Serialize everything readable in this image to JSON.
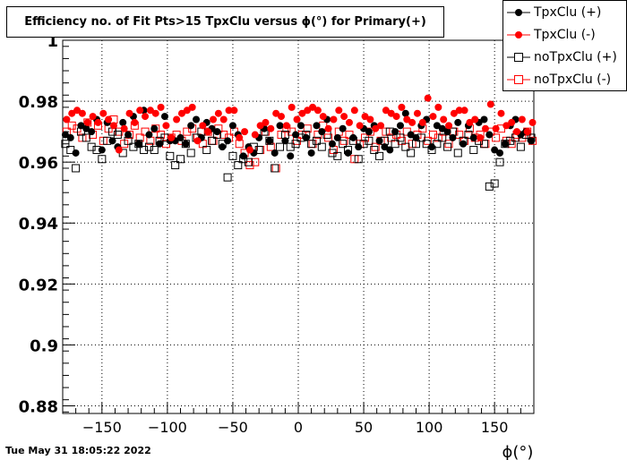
{
  "title": "Efficiency no. of Fit Pts>15 TpxClu versus ϕ(°) for Primary(+)",
  "datestamp": "Tue May 31 18:05:22 2022",
  "chart_data": {
    "type": "scatter",
    "title": "Efficiency no. of Fit Pts>15 TpxClu versus ϕ(°) for Primary(+)",
    "xlabel": "ϕ(°)",
    "ylabel": "",
    "xlim": [
      -180,
      180
    ],
    "ylim": [
      0.8775,
      1.0
    ],
    "x_ticks": [
      -150,
      -100,
      -50,
      0,
      50,
      100,
      150
    ],
    "x_tick_labels": [
      "−150",
      "−100",
      "−50",
      "0",
      "50",
      "100",
      "150"
    ],
    "y_ticks": [
      0.88,
      0.9,
      0.92,
      0.94,
      0.96,
      0.98,
      1.0
    ],
    "y_tick_labels": [
      "0.88",
      "0.9",
      "0.92",
      "0.94",
      "0.96",
      "0.98",
      "1"
    ],
    "grid": true,
    "legend_position": "top-right",
    "series": [
      {
        "name": "TpxClu (+)",
        "marker": "filled-circle",
        "color": "#000000",
        "x": [
          -178,
          -174,
          -170,
          -166,
          -162,
          -158,
          -154,
          -150,
          -146,
          -142,
          -138,
          -134,
          -130,
          -126,
          -122,
          -118,
          -114,
          -110,
          -106,
          -102,
          -98,
          -94,
          -90,
          -86,
          -82,
          -78,
          -74,
          -70,
          -66,
          -62,
          -58,
          -54,
          -50,
          -46,
          -42,
          -38,
          -34,
          -30,
          -26,
          -22,
          -18,
          -14,
          -10,
          -6,
          -2,
          2,
          6,
          10,
          14,
          18,
          22,
          26,
          30,
          34,
          38,
          42,
          46,
          50,
          54,
          58,
          62,
          66,
          70,
          74,
          78,
          82,
          86,
          90,
          94,
          98,
          102,
          106,
          110,
          114,
          118,
          122,
          126,
          130,
          134,
          138,
          142,
          146,
          150,
          154,
          158,
          162,
          166,
          170,
          174,
          178
        ],
        "y": [
          0.969,
          0.968,
          0.963,
          0.972,
          0.971,
          0.97,
          0.974,
          0.964,
          0.973,
          0.967,
          0.965,
          0.973,
          0.969,
          0.975,
          0.966,
          0.977,
          0.969,
          0.971,
          0.966,
          0.975,
          0.967,
          0.967,
          0.968,
          0.966,
          0.972,
          0.974,
          0.968,
          0.973,
          0.971,
          0.97,
          0.965,
          0.967,
          0.972,
          0.969,
          0.962,
          0.965,
          0.963,
          0.968,
          0.971,
          0.967,
          0.963,
          0.972,
          0.967,
          0.962,
          0.969,
          0.972,
          0.968,
          0.963,
          0.972,
          0.97,
          0.974,
          0.966,
          0.968,
          0.971,
          0.963,
          0.968,
          0.965,
          0.971,
          0.97,
          0.972,
          0.967,
          0.965,
          0.964,
          0.97,
          0.972,
          0.976,
          0.969,
          0.968,
          0.972,
          0.974,
          0.965,
          0.972,
          0.971,
          0.97,
          0.968,
          0.973,
          0.966,
          0.972,
          0.968,
          0.973,
          0.974,
          0.969,
          0.964,
          0.963,
          0.966,
          0.972,
          0.974,
          0.969,
          0.97,
          0.967
        ]
      },
      {
        "name": "TpxClu (-)",
        "marker": "filled-circle",
        "color": "#ff0000",
        "x": [
          -177,
          -173,
          -169,
          -165,
          -161,
          -157,
          -153,
          -149,
          -145,
          -141,
          -137,
          -133,
          -129,
          -125,
          -121,
          -117,
          -113,
          -109,
          -105,
          -101,
          -97,
          -93,
          -89,
          -85,
          -81,
          -77,
          -73,
          -69,
          -65,
          -61,
          -57,
          -53,
          -49,
          -45,
          -41,
          -37,
          -33,
          -29,
          -25,
          -21,
          -17,
          -13,
          -9,
          -5,
          -1,
          3,
          7,
          11,
          15,
          19,
          23,
          27,
          31,
          35,
          39,
          43,
          47,
          51,
          55,
          59,
          63,
          67,
          71,
          75,
          79,
          83,
          87,
          91,
          95,
          99,
          103,
          107,
          111,
          115,
          119,
          123,
          127,
          131,
          135,
          139,
          143,
          147,
          151,
          155,
          159,
          163,
          167,
          171,
          175,
          179
        ],
        "y": [
          0.974,
          0.976,
          0.977,
          0.976,
          0.973,
          0.975,
          0.973,
          0.976,
          0.974,
          0.972,
          0.964,
          0.971,
          0.976,
          0.973,
          0.977,
          0.975,
          0.977,
          0.976,
          0.978,
          0.972,
          0.968,
          0.974,
          0.976,
          0.977,
          0.978,
          0.967,
          0.972,
          0.97,
          0.974,
          0.976,
          0.974,
          0.977,
          0.977,
          0.968,
          0.97,
          0.964,
          0.969,
          0.972,
          0.973,
          0.971,
          0.976,
          0.975,
          0.972,
          0.978,
          0.974,
          0.976,
          0.977,
          0.978,
          0.977,
          0.975,
          0.971,
          0.974,
          0.977,
          0.975,
          0.973,
          0.977,
          0.972,
          0.975,
          0.974,
          0.971,
          0.972,
          0.977,
          0.976,
          0.975,
          0.978,
          0.974,
          0.973,
          0.976,
          0.973,
          0.981,
          0.975,
          0.978,
          0.974,
          0.972,
          0.976,
          0.977,
          0.977,
          0.973,
          0.974,
          0.968,
          0.971,
          0.979,
          0.971,
          0.976,
          0.972,
          0.973,
          0.97,
          0.974,
          0.97,
          0.973
        ]
      },
      {
        "name": "noTpxClu (+)",
        "marker": "open-square",
        "color": "#000000",
        "x": [
          -178,
          -174,
          -170,
          -166,
          -162,
          -158,
          -154,
          -150,
          -146,
          -142,
          -138,
          -134,
          -130,
          -126,
          -122,
          -118,
          -114,
          -110,
          -106,
          -102,
          -98,
          -94,
          -90,
          -86,
          -82,
          -78,
          -74,
          -70,
          -66,
          -62,
          -58,
          -54,
          -50,
          -46,
          -42,
          -38,
          -34,
          -30,
          -26,
          -22,
          -18,
          -14,
          -10,
          -6,
          -2,
          2,
          6,
          10,
          14,
          18,
          22,
          26,
          30,
          34,
          38,
          42,
          46,
          50,
          54,
          58,
          62,
          66,
          70,
          74,
          78,
          82,
          86,
          90,
          94,
          98,
          102,
          106,
          110,
          114,
          118,
          122,
          126,
          130,
          134,
          138,
          142,
          146,
          150,
          154,
          158,
          162,
          166,
          170,
          174,
          178
        ],
        "y": [
          0.966,
          0.964,
          0.958,
          0.97,
          0.968,
          0.965,
          0.964,
          0.961,
          0.967,
          0.97,
          0.969,
          0.963,
          0.967,
          0.965,
          0.966,
          0.964,
          0.965,
          0.964,
          0.967,
          0.968,
          0.962,
          0.959,
          0.961,
          0.966,
          0.963,
          0.968,
          0.97,
          0.964,
          0.967,
          0.969,
          0.966,
          0.955,
          0.962,
          0.959,
          0.961,
          0.96,
          0.965,
          0.964,
          0.97,
          0.967,
          0.958,
          0.965,
          0.969,
          0.965,
          0.966,
          0.968,
          0.969,
          0.966,
          0.967,
          0.965,
          0.969,
          0.963,
          0.962,
          0.966,
          0.964,
          0.967,
          0.961,
          0.966,
          0.967,
          0.964,
          0.962,
          0.967,
          0.97,
          0.966,
          0.968,
          0.965,
          0.963,
          0.966,
          0.968,
          0.966,
          0.964,
          0.966,
          0.968,
          0.965,
          0.97,
          0.963,
          0.967,
          0.969,
          0.964,
          0.967,
          0.966,
          0.952,
          0.953,
          0.96,
          0.966,
          0.967,
          0.968,
          0.965,
          0.969,
          0.968
        ]
      },
      {
        "name": "noTpxClu (-)",
        "marker": "open-square",
        "color": "#ff0000",
        "x": [
          -177,
          -173,
          -169,
          -165,
          -161,
          -157,
          -153,
          -149,
          -145,
          -141,
          -137,
          -133,
          -129,
          -125,
          -121,
          -117,
          -113,
          -109,
          -105,
          -101,
          -97,
          -93,
          -89,
          -85,
          -81,
          -77,
          -73,
          -69,
          -65,
          -61,
          -57,
          -53,
          -49,
          -45,
          -41,
          -37,
          -33,
          -29,
          -25,
          -21,
          -17,
          -13,
          -9,
          -5,
          -1,
          3,
          7,
          11,
          15,
          19,
          23,
          27,
          31,
          35,
          39,
          43,
          47,
          51,
          55,
          59,
          63,
          67,
          71,
          75,
          79,
          83,
          87,
          91,
          95,
          99,
          103,
          107,
          111,
          115,
          119,
          123,
          127,
          131,
          135,
          139,
          143,
          147,
          151,
          155,
          159,
          163,
          167,
          171,
          175,
          179
        ],
        "y": [
          0.97,
          0.972,
          0.971,
          0.968,
          0.973,
          0.969,
          0.972,
          0.967,
          0.971,
          0.974,
          0.97,
          0.966,
          0.969,
          0.972,
          0.968,
          0.97,
          0.967,
          0.971,
          0.969,
          0.966,
          0.968,
          0.969,
          0.967,
          0.97,
          0.971,
          0.968,
          0.966,
          0.97,
          0.967,
          0.971,
          0.969,
          0.968,
          0.97,
          0.966,
          0.963,
          0.959,
          0.96,
          0.964,
          0.97,
          0.965,
          0.958,
          0.969,
          0.971,
          0.97,
          0.967,
          0.969,
          0.971,
          0.966,
          0.969,
          0.972,
          0.968,
          0.964,
          0.97,
          0.967,
          0.969,
          0.961,
          0.966,
          0.968,
          0.97,
          0.965,
          0.967,
          0.97,
          0.968,
          0.969,
          0.967,
          0.97,
          0.966,
          0.969,
          0.971,
          0.967,
          0.969,
          0.968,
          0.97,
          0.966,
          0.97,
          0.969,
          0.967,
          0.971,
          0.968,
          0.969,
          0.966,
          0.97,
          0.968,
          0.971,
          0.967,
          0.966,
          0.969,
          0.968,
          0.97,
          0.967
        ]
      }
    ]
  }
}
